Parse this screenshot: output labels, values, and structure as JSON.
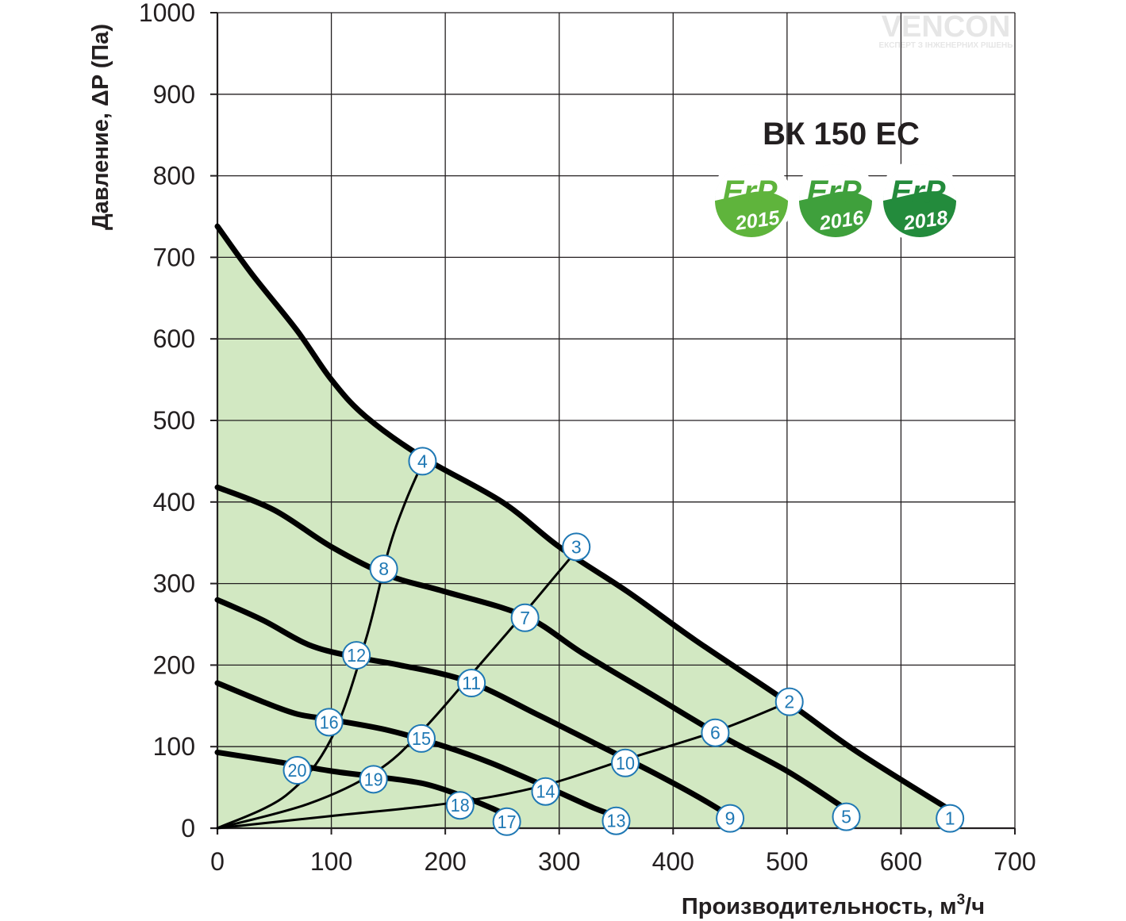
{
  "watermark": {
    "brand": "VENCON",
    "tagline": "ЕКСПЕРТ З ІНЖЕНЕРНИХ РІШЕНЬ"
  },
  "chart_data": {
    "type": "line",
    "title": "ВК 150 ЕС",
    "xlabel": "Производительность, м³/ч",
    "ylabel": "Давление, ΔP (Па)",
    "xlim": [
      0,
      700
    ],
    "ylim": [
      0,
      1000
    ],
    "xticks": [
      0,
      100,
      200,
      300,
      400,
      500,
      600,
      700
    ],
    "yticks": [
      0,
      100,
      200,
      300,
      400,
      500,
      600,
      700,
      800,
      900,
      1000
    ],
    "grid": true,
    "fill_color": "#d2e8c2",
    "curve_color": "#000000",
    "badges": [
      {
        "label": "ErP",
        "year": "2015",
        "color": "#5fb43c"
      },
      {
        "label": "ErP",
        "year": "2016",
        "color": "#3fa03c"
      },
      {
        "label": "ErP",
        "year": "2018",
        "color": "#238b3c"
      }
    ],
    "series": [
      {
        "x": [
          0,
          30,
          70,
          100,
          130,
          180,
          250,
          300,
          360,
          420,
          500,
          560,
          640
        ],
        "y": [
          738,
          680,
          610,
          550,
          505,
          455,
          400,
          345,
          290,
          230,
          155,
          95,
          25
        ]
      },
      {
        "x": [
          0,
          50,
          100,
          150,
          200,
          270,
          320,
          380,
          440,
          500,
          550
        ],
        "y": [
          418,
          390,
          345,
          310,
          290,
          260,
          215,
          165,
          115,
          70,
          25
        ]
      },
      {
        "x": [
          0,
          40,
          80,
          120,
          160,
          220,
          280,
          330,
          380,
          420,
          450
        ],
        "y": [
          280,
          255,
          225,
          210,
          200,
          180,
          140,
          105,
          70,
          40,
          15
        ]
      },
      {
        "x": [
          0,
          40,
          70,
          100,
          150,
          200,
          240,
          290,
          330,
          350
        ],
        "y": [
          178,
          155,
          140,
          133,
          120,
          100,
          80,
          50,
          25,
          15
        ]
      },
      {
        "x": [
          0,
          50,
          100,
          140,
          180,
          210,
          240,
          255
        ],
        "y": [
          93,
          82,
          70,
          63,
          55,
          42,
          25,
          15
        ]
      },
      {
        "x": [
          0,
          60,
          100,
          130,
          150,
          165,
          180
        ],
        "y": [
          0,
          40,
          110,
          230,
          340,
          400,
          448
        ]
      },
      {
        "x": [
          0,
          80,
          140,
          180,
          230,
          270,
          300,
          318
        ],
        "y": [
          0,
          30,
          70,
          120,
          200,
          265,
          315,
          345
        ]
      },
      {
        "x": [
          0,
          100,
          200,
          280,
          360,
          440,
          502
        ],
        "y": [
          0,
          15,
          30,
          50,
          85,
          120,
          155
        ]
      }
    ],
    "markers": [
      {
        "id": "1",
        "x": 643,
        "y": 12
      },
      {
        "id": "2",
        "x": 502,
        "y": 155
      },
      {
        "id": "3",
        "x": 315,
        "y": 345
      },
      {
        "id": "4",
        "x": 180,
        "y": 450
      },
      {
        "id": "5",
        "x": 552,
        "y": 14
      },
      {
        "id": "6",
        "x": 437,
        "y": 117
      },
      {
        "id": "7",
        "x": 270,
        "y": 258
      },
      {
        "id": "8",
        "x": 146,
        "y": 318
      },
      {
        "id": "9",
        "x": 450,
        "y": 12
      },
      {
        "id": "10",
        "x": 358,
        "y": 80
      },
      {
        "id": "11",
        "x": 223,
        "y": 178
      },
      {
        "id": "12",
        "x": 122,
        "y": 212
      },
      {
        "id": "13",
        "x": 350,
        "y": 9
      },
      {
        "id": "14",
        "x": 288,
        "y": 45
      },
      {
        "id": "15",
        "x": 179,
        "y": 110
      },
      {
        "id": "16",
        "x": 98,
        "y": 130
      },
      {
        "id": "17",
        "x": 254,
        "y": 8
      },
      {
        "id": "18",
        "x": 213,
        "y": 28
      },
      {
        "id": "19",
        "x": 137,
        "y": 60
      },
      {
        "id": "20",
        "x": 70,
        "y": 71
      }
    ]
  }
}
